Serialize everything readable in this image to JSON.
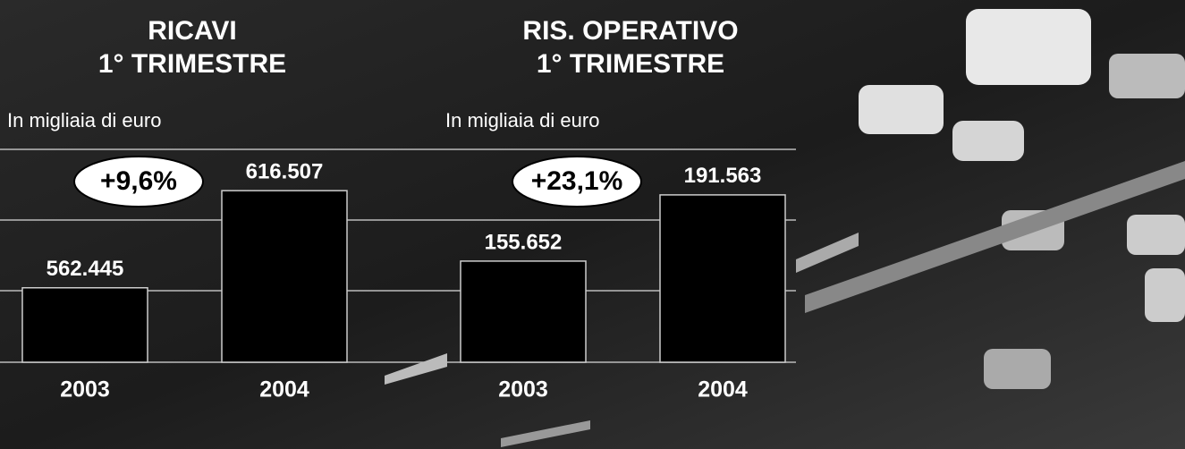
{
  "chart_data": [
    {
      "type": "bar",
      "title": [
        "RICAVI",
        "1° TRIMESTRE"
      ],
      "unit_label": "In migliaia di euro",
      "annotation": "+9,6%",
      "categories": [
        "2003",
        "2004"
      ],
      "values": [
        562445,
        616507
      ],
      "value_labels": [
        "562.445",
        "616.507"
      ],
      "color": "#000000",
      "ylim": [
        521000,
        638000
      ]
    },
    {
      "type": "bar",
      "title": [
        "RIS. OPERATIVO",
        "1° TRIMESTRE"
      ],
      "unit_label": "In migliaia di euro",
      "annotation": "+23,1%",
      "categories": [
        "2003",
        "2004"
      ],
      "values": [
        155652,
        191563
      ],
      "value_labels": [
        "155.652",
        "191.563"
      ],
      "color": "#000000",
      "ylim": [
        100800,
        214800
      ]
    }
  ]
}
